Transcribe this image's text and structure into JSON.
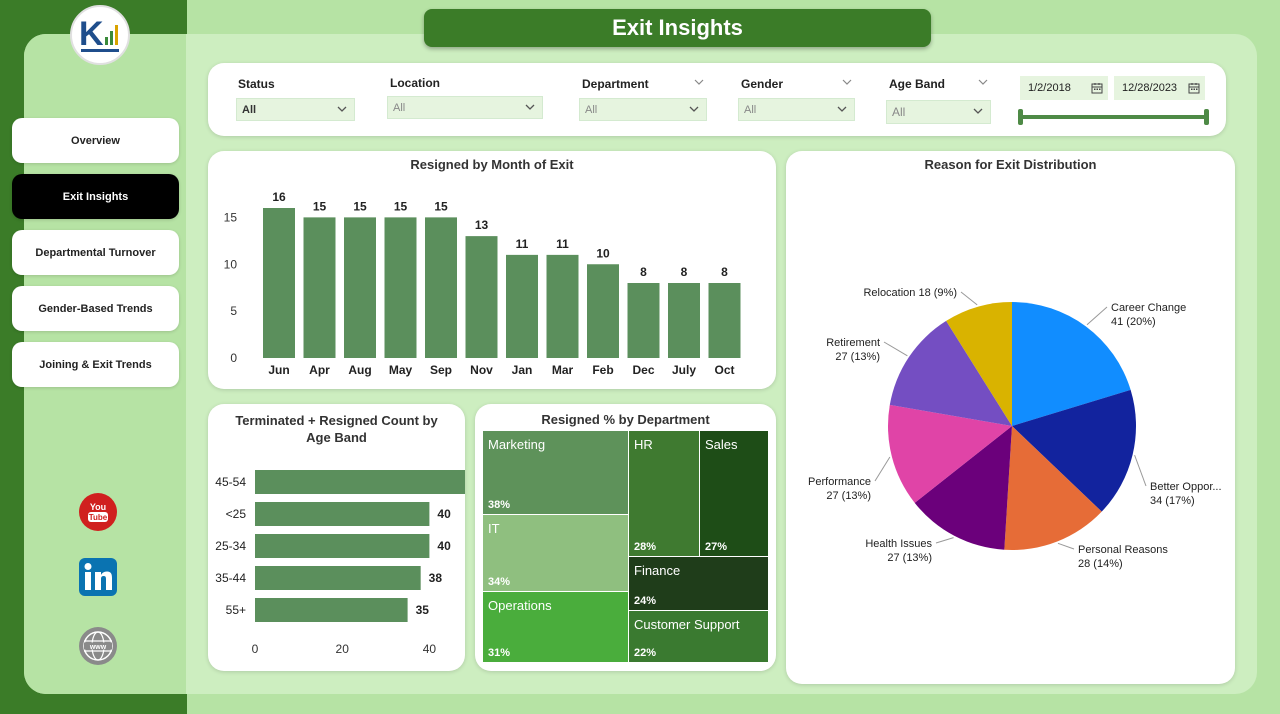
{
  "header": {
    "title": "Exit Insights"
  },
  "sidebar": {
    "items": [
      {
        "label": "Overview",
        "active": false
      },
      {
        "label": "Exit Insights",
        "active": true
      },
      {
        "label": "Departmental Turnover",
        "active": false
      },
      {
        "label": "Gender-Based Trends",
        "active": false
      },
      {
        "label": "Joining & Exit Trends",
        "active": false
      }
    ],
    "social": [
      "youtube-icon",
      "linkedin-icon",
      "website-icon"
    ]
  },
  "filters": {
    "status": {
      "label": "Status",
      "value": "All"
    },
    "location": {
      "label": "Location",
      "value": "All"
    },
    "department": {
      "label": "Department",
      "value": "All"
    },
    "gender": {
      "label": "Gender",
      "value": "All"
    },
    "age_band": {
      "label": "Age Band",
      "value": "All"
    },
    "date_start": "1/2/2018",
    "date_end": "12/28/2023"
  },
  "charts": {
    "month": {
      "title": "Resigned by Month of Exit"
    },
    "age": {
      "title": "Terminated + Resigned Count by Age Band"
    },
    "dept": {
      "title": "Resigned % by Department"
    },
    "reason": {
      "title": "Reason for Exit Distribution"
    }
  },
  "chart_data": [
    {
      "type": "bar",
      "title": "Resigned by Month of Exit",
      "categories": [
        "Jun",
        "Apr",
        "Aug",
        "May",
        "Sep",
        "Nov",
        "Jan",
        "Mar",
        "Feb",
        "Dec",
        "July",
        "Oct"
      ],
      "values": [
        16,
        15,
        15,
        15,
        15,
        13,
        11,
        11,
        10,
        8,
        8,
        8
      ],
      "yticks": [
        0,
        5,
        10,
        15
      ],
      "ylim": [
        0,
        16
      ],
      "color": "#5b8f5c"
    },
    {
      "type": "bar",
      "orientation": "horizontal",
      "title": "Terminated + Resigned Count by Age Band",
      "categories": [
        "45-54",
        "<25",
        "25-34",
        "35-44",
        "55+"
      ],
      "values": [
        49,
        40,
        40,
        38,
        35
      ],
      "xticks": [
        0,
        20,
        40
      ],
      "xlim": [
        0,
        50
      ],
      "color": "#5b8f5c"
    },
    {
      "type": "treemap",
      "title": "Resigned % by Department",
      "items": [
        {
          "name": "Marketing",
          "value": "38%",
          "color": "#5e925a"
        },
        {
          "name": "IT",
          "value": "34%",
          "color": "#8fbf7f"
        },
        {
          "name": "Operations",
          "value": "31%",
          "color": "#4aad3c"
        },
        {
          "name": "HR",
          "value": "28%",
          "color": "#3f7a30"
        },
        {
          "name": "Sales",
          "value": "27%",
          "color": "#1e4d17"
        },
        {
          "name": "Finance",
          "value": "24%",
          "color": "#1f3d1a"
        },
        {
          "name": "Customer Support",
          "value": "22%",
          "color": "#3a7a30"
        }
      ]
    },
    {
      "type": "pie",
      "title": "Reason for Exit Distribution",
      "slices": [
        {
          "name": "Career Change",
          "value": 41,
          "pct": "20%",
          "color": "#118dff"
        },
        {
          "name": "Better Oppor...",
          "value": 34,
          "pct": "17%",
          "color": "#12239e"
        },
        {
          "name": "Personal Reasons",
          "value": 28,
          "pct": "14%",
          "color": "#e66c37"
        },
        {
          "name": "Health Issues",
          "value": 27,
          "pct": "13%",
          "color": "#6b007b"
        },
        {
          "name": "Performance",
          "value": 27,
          "pct": "13%",
          "color": "#e044a7"
        },
        {
          "name": "Retirement",
          "value": 27,
          "pct": "13%",
          "color": "#744ec2"
        },
        {
          "name": "Relocation",
          "value": 18,
          "pct": "9%",
          "color": "#d9b300"
        }
      ]
    }
  ]
}
